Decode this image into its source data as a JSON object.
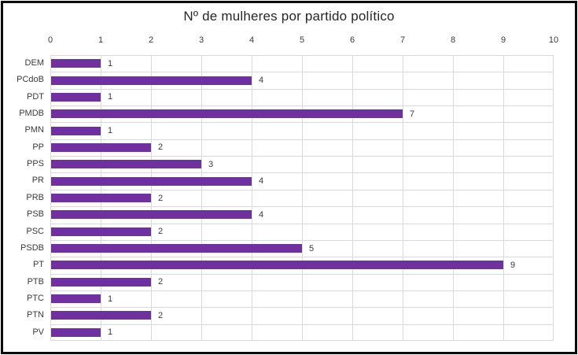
{
  "chart_data": {
    "type": "bar",
    "orientation": "horizontal",
    "title": "Nº de mulheres por partido político",
    "categories": [
      "DEM",
      "PCdoB",
      "PDT",
      "PMDB",
      "PMN",
      "PP",
      "PPS",
      "PR",
      "PRB",
      "PSB",
      "PSC",
      "PSDB",
      "PT",
      "PTB",
      "PTC",
      "PTN",
      "PV"
    ],
    "values": [
      1,
      4,
      1,
      7,
      1,
      2,
      3,
      4,
      2,
      4,
      2,
      5,
      9,
      2,
      1,
      2,
      1
    ],
    "xlabel": "",
    "ylabel": "",
    "xlim": [
      0,
      10
    ],
    "xticks": [
      0,
      1,
      2,
      3,
      4,
      5,
      6,
      7,
      8,
      9,
      10
    ],
    "tick_labels": [
      "0",
      "1",
      "2",
      "3",
      "4",
      "5",
      "6",
      "7",
      "8",
      "9",
      "10"
    ],
    "grid": true,
    "data_labels": true,
    "legend": "none",
    "axis_position": "top",
    "colors": {
      "bar": "#7030A0",
      "gridline": "#d9d9d9",
      "text": "#3a3a3a",
      "title": "#262626",
      "frame_border": "#0b0b0b",
      "background": "#ffffff"
    }
  }
}
